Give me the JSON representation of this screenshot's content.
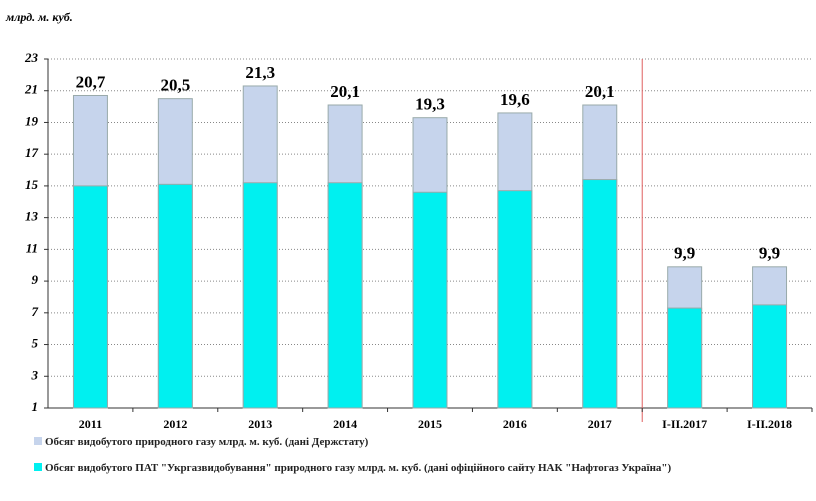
{
  "chart_data": {
    "type": "bar",
    "barmode": "overlay",
    "y_label": "млрд. м. куб.",
    "categories": [
      "2011",
      "2012",
      "2013",
      "2014",
      "2015",
      "2016",
      "2017",
      "I-II.2017",
      "I-II.2018"
    ],
    "series": [
      {
        "name": "Обсяг видобутого природного газу млрд. м. куб. (дані  Держстату)",
        "color": "#c6d4ec",
        "values": [
          20.7,
          20.5,
          21.3,
          20.1,
          19.3,
          19.6,
          20.1,
          9.9,
          9.9
        ],
        "value_labels": [
          "20,7",
          "20,5",
          "21,3",
          "20,1",
          "19,3",
          "19,6",
          "20,1",
          "9,9",
          "9,9"
        ]
      },
      {
        "name": "Обсяг видобутого ПАТ \"Укргазвидобування\" природного газу млрд. м. куб. (дані офіційного сайту НАК \"Нафтогаз Україна\")",
        "color": "#00f0f0",
        "values": [
          15.0,
          15.1,
          15.2,
          15.2,
          14.6,
          14.7,
          15.4,
          7.3,
          7.5
        ]
      }
    ],
    "ylim": [
      1,
      23
    ],
    "yticks": [
      1,
      3,
      5,
      7,
      9,
      11,
      13,
      15,
      17,
      19,
      21,
      23
    ],
    "grid": true
  }
}
